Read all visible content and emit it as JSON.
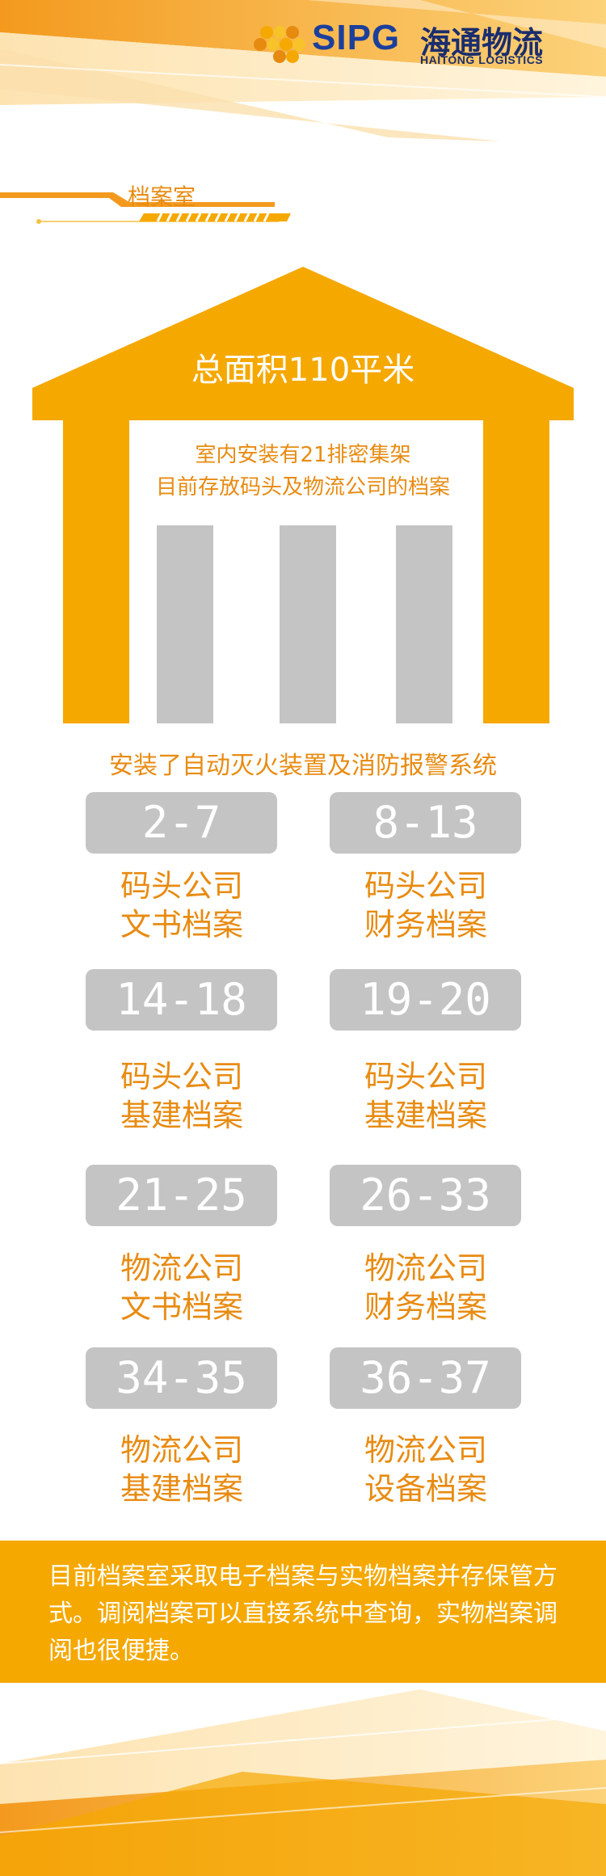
{
  "header": {
    "logo_en": "SIPG",
    "logo_cn": "海通物流",
    "logo_sub": "HAITONG LOGISTICS"
  },
  "section_title": "档案室",
  "house": {
    "area": "总面积110平米",
    "desc_line1": "室内安装有21排密集架",
    "desc_line2": "目前存放码头及物流公司的档案"
  },
  "fire_system": "安装了自动灭火装置及消防报警系统",
  "shelves": [
    {
      "range": "2-7",
      "line1": "码头公司",
      "line2": "文书档案"
    },
    {
      "range": "8-13",
      "line1": "码头公司",
      "line2": "财务档案"
    },
    {
      "range": "14-18",
      "line1": "码头公司",
      "line2": "基建档案"
    },
    {
      "range": "19-20",
      "line1": "码头公司",
      "line2": "基建档案"
    },
    {
      "range": "21-25",
      "line1": "物流公司",
      "line2": "文书档案"
    },
    {
      "range": "26-33",
      "line1": "物流公司",
      "line2": "财务档案"
    },
    {
      "range": "34-35",
      "line1": "物流公司",
      "line2": "基建档案"
    },
    {
      "range": "36-37",
      "line1": "物流公司",
      "line2": "设备档案"
    }
  ],
  "summary": "目前档案室采取电子档案与实物档案并存保管方式。调阅档案可以直接系统中查询，实物档案调阅也很便捷。",
  "colors": {
    "accent": "#f5a800",
    "text_orange": "#e88b12",
    "tile_gray": "#c4c4c4",
    "brand_blue": "#1c3f9c"
  }
}
